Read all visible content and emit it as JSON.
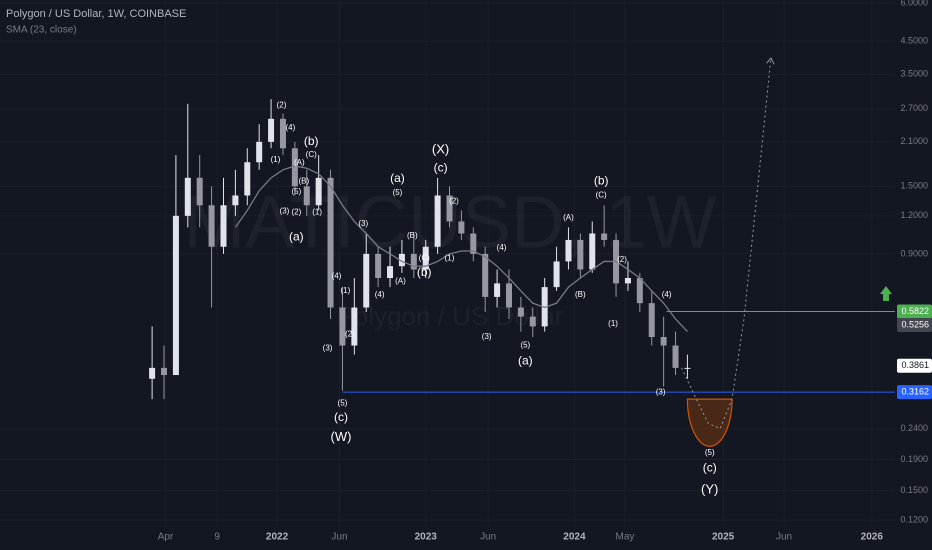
{
  "chart_data": {
    "type": "candlestick",
    "title": "Polygon / US Dollar, 1W, COINBASE",
    "watermark": [
      "MATICUSD, 1W",
      "Polygon / US Dollar"
    ],
    "log_scale": true,
    "grid": true,
    "up_color": "#e0e3eb",
    "down_color": "#9598a1",
    "xlim": [
      2020.137,
      2026.156
    ],
    "ylim": [
      0.1132,
      6.14
    ],
    "xticks": [
      {
        "value": 2021.25,
        "label": "Apr"
      },
      {
        "value": 2021.597,
        "label": "9"
      },
      2022,
      {
        "value": 2022.42,
        "label": "Jun"
      },
      2023,
      {
        "value": 2023.42,
        "label": "Jun"
      },
      2024,
      {
        "value": 2024.34,
        "label": "May"
      },
      2025,
      {
        "value": 2025.41,
        "label": "Jun"
      },
      2026
    ],
    "yticks": [
      {
        "value": 6,
        "label": "6.0000"
      },
      {
        "value": 4.5,
        "label": "4.5000"
      },
      {
        "value": 3.5,
        "label": "3.5000"
      },
      {
        "value": 2.7,
        "label": "2.7000"
      },
      {
        "value": 2.1,
        "label": "2.1000"
      },
      {
        "value": 1.5,
        "label": "1.5000"
      },
      {
        "value": 1.2,
        "label": "1.2000"
      },
      {
        "value": 0.9,
        "label": "0.9000"
      },
      {
        "value": 0.24,
        "label": "0.2400"
      },
      {
        "value": 0.19,
        "label": "0.1900"
      },
      {
        "value": 0.15,
        "label": "0.1500"
      },
      {
        "value": 0.12,
        "label": "0.1200"
      }
    ],
    "x": [
      2021.16,
      2021.24,
      2021.32,
      2021.4,
      2021.48,
      2021.56,
      2021.64,
      2021.72,
      2021.8,
      2021.88,
      2021.96,
      2022.04,
      2022.12,
      2022.2,
      2022.28,
      2022.36,
      2022.44,
      2022.52,
      2022.6,
      2022.68,
      2022.76,
      2022.84,
      2022.92,
      2023,
      2023.08,
      2023.16,
      2023.24,
      2023.32,
      2023.4,
      2023.48,
      2023.56,
      2023.64,
      2023.72,
      2023.8,
      2023.88,
      2023.96,
      2024.04,
      2024.12,
      2024.2,
      2024.28,
      2024.36,
      2024.44,
      2024.52,
      2024.6,
      2024.68,
      2024.76
    ],
    "open": [
      0.35,
      0.38,
      0.36,
      1.2,
      1.6,
      1.3,
      0.95,
      1.3,
      1.4,
      1.8,
      2.1,
      2.5,
      2.0,
      1.5,
      1.3,
      1.6,
      0.6,
      0.45,
      0.6,
      0.9,
      0.75,
      0.82,
      0.9,
      0.8,
      0.95,
      1.4,
      1.15,
      1.05,
      0.9,
      0.65,
      0.72,
      0.6,
      0.56,
      0.52,
      0.7,
      0.85,
      1.0,
      0.8,
      1.05,
      1.0,
      0.72,
      0.75,
      0.62,
      0.48,
      0.45,
      0.38
    ],
    "high": [
      0.52,
      0.45,
      1.9,
      2.8,
      1.9,
      1.5,
      1.6,
      1.7,
      2.0,
      2.4,
      2.9,
      2.6,
      2.1,
      1.7,
      1.9,
      1.7,
      0.7,
      0.75,
      1.05,
      0.95,
      0.95,
      1.0,
      1.05,
      1.0,
      1.6,
      1.5,
      1.25,
      1.1,
      0.95,
      0.8,
      0.8,
      0.65,
      0.6,
      0.75,
      0.95,
      1.1,
      1.05,
      1.15,
      1.3,
      1.05,
      0.85,
      0.78,
      0.68,
      0.56,
      0.5,
      0.42
    ],
    "low": [
      0.3,
      0.3,
      0.36,
      1.1,
      1.1,
      0.6,
      0.9,
      1.2,
      1.3,
      1.7,
      2.0,
      1.9,
      1.4,
      1.2,
      1.25,
      0.55,
      0.32,
      0.42,
      0.58,
      0.7,
      0.7,
      0.78,
      0.75,
      0.75,
      0.9,
      1.1,
      1.0,
      0.85,
      0.58,
      0.6,
      0.55,
      0.5,
      0.48,
      0.5,
      0.68,
      0.8,
      0.75,
      0.78,
      0.95,
      0.65,
      0.68,
      0.58,
      0.45,
      0.33,
      0.36,
      0.35
    ],
    "close": [
      0.38,
      0.36,
      1.2,
      1.6,
      1.3,
      0.95,
      1.3,
      1.4,
      1.8,
      2.1,
      2.5,
      2.0,
      1.5,
      1.3,
      1.6,
      0.6,
      0.45,
      0.6,
      0.9,
      0.75,
      0.82,
      0.9,
      0.8,
      0.95,
      1.4,
      1.15,
      1.05,
      0.9,
      0.65,
      0.72,
      0.6,
      0.56,
      0.52,
      0.7,
      0.85,
      1.0,
      0.8,
      1.05,
      1.0,
      0.72,
      0.75,
      0.62,
      0.48,
      0.45,
      0.38,
      0.38
    ],
    "sma": {
      "name": "SMA (23, close)",
      "color": "#787b86",
      "values": [
        null,
        null,
        null,
        null,
        null,
        null,
        null,
        1.1,
        1.25,
        1.45,
        1.6,
        1.7,
        1.75,
        1.72,
        1.65,
        1.5,
        1.3,
        1.15,
        1.05,
        0.95,
        0.9,
        0.85,
        0.82,
        0.82,
        0.85,
        0.9,
        0.92,
        0.92,
        0.88,
        0.82,
        0.75,
        0.68,
        0.62,
        0.6,
        0.62,
        0.7,
        0.75,
        0.8,
        0.85,
        0.85,
        0.8,
        0.75,
        0.68,
        0.62,
        0.55,
        0.5
      ]
    },
    "levels": [
      {
        "value": 0.5822,
        "from": 2024.62,
        "color": "#4caf50"
      },
      {
        "value": 0.3162,
        "from": 2022.44,
        "color": "#2962ff"
      }
    ],
    "price_labels": [
      {
        "value": 0.5822,
        "label": "0.5822",
        "color": "#4caf50"
      },
      {
        "value": 0.5256,
        "label": "0.5256",
        "color": "#434651"
      },
      {
        "value": 0.3861,
        "label": "0.3861",
        "color": "#ffffff"
      },
      {
        "value": 0.3162,
        "label": "0.3162",
        "color": "#2962ff"
      }
    ],
    "projection": {
      "x": [
        2024.72,
        2024.82,
        2024.9,
        2024.98,
        2025.06,
        2025.14,
        2025.22,
        2025.32
      ],
      "y": [
        0.38,
        0.3,
        0.25,
        0.24,
        0.3,
        0.55,
        1.3,
        3.9
      ]
    },
    "target_zone": {
      "x": [
        2024.76,
        2025.06
      ],
      "y": [
        0.21,
        0.3
      ]
    },
    "annotations": [
      {
        "text": "(2)",
        "x": 2022.03,
        "y": 2.77
      },
      {
        "text": "(4)",
        "x": 2022.09,
        "y": 2.33
      },
      {
        "text": "(1)",
        "x": 2021.99,
        "y": 1.83
      },
      {
        "text": "(A)",
        "x": 2022.15,
        "y": 1.79
      },
      {
        "text": "(B)",
        "x": 2022.18,
        "y": 1.56
      },
      {
        "text": "(5)",
        "x": 2022.13,
        "y": 1.44
      },
      {
        "text": "(3)",
        "x": 2022.05,
        "y": 1.24
      },
      {
        "text": "(2)",
        "x": 2022.13,
        "y": 1.23
      },
      {
        "text": "(1)",
        "x": 2022.27,
        "y": 1.23
      },
      {
        "text": "(a)",
        "x": 2022.13,
        "y": 1.02
      },
      {
        "text": "(b)",
        "x": 2022.23,
        "y": 2.1
      },
      {
        "text": "(C)",
        "x": 2022.23,
        "y": 1.9
      },
      {
        "text": "(4)",
        "x": 2022.4,
        "y": 0.76
      },
      {
        "text": "(1)",
        "x": 2022.46,
        "y": 0.68
      },
      {
        "text": "(2)",
        "x": 2022.49,
        "y": 0.49
      },
      {
        "text": "(3)",
        "x": 2022.34,
        "y": 0.44
      },
      {
        "text": "(5)",
        "x": 2022.44,
        "y": 0.29
      },
      {
        "text": "(c)",
        "x": 2022.43,
        "y": 0.26
      },
      {
        "text": "(W)",
        "x": 2022.43,
        "y": 0.224
      },
      {
        "text": "(3)",
        "x": 2022.58,
        "y": 1.13
      },
      {
        "text": "(4)",
        "x": 2022.69,
        "y": 0.66
      },
      {
        "text": "(A)",
        "x": 2022.83,
        "y": 0.73
      },
      {
        "text": "(5)",
        "x": 2022.81,
        "y": 1.43
      },
      {
        "text": "(a)",
        "x": 2022.81,
        "y": 1.59
      },
      {
        "text": "(B)",
        "x": 2022.91,
        "y": 1.03
      },
      {
        "text": "(C)",
        "x": 2022.99,
        "y": 0.87
      },
      {
        "text": "(b)",
        "x": 2022.99,
        "y": 0.78
      },
      {
        "text": "(X)",
        "x": 2023.1,
        "y": 1.97
      },
      {
        "text": "(c)",
        "x": 2023.1,
        "y": 1.72
      },
      {
        "text": "(2)",
        "x": 2023.19,
        "y": 1.34
      },
      {
        "text": "(1)",
        "x": 2023.16,
        "y": 0.87
      },
      {
        "text": "(4)",
        "x": 2023.51,
        "y": 0.94
      },
      {
        "text": "(3)",
        "x": 2023.41,
        "y": 0.48
      },
      {
        "text": "(5)",
        "x": 2023.67,
        "y": 0.45
      },
      {
        "text": "(a)",
        "x": 2023.67,
        "y": 0.4
      },
      {
        "text": "(A)",
        "x": 2023.96,
        "y": 1.18
      },
      {
        "text": "(B)",
        "x": 2024.04,
        "y": 0.66
      },
      {
        "text": "(b)",
        "x": 2024.18,
        "y": 1.56
      },
      {
        "text": "(C)",
        "x": 2024.18,
        "y": 1.4
      },
      {
        "text": "(2)",
        "x": 2024.32,
        "y": 0.86
      },
      {
        "text": "(1)",
        "x": 2024.26,
        "y": 0.53
      },
      {
        "text": "(4)",
        "x": 2024.62,
        "y": 0.66
      },
      {
        "text": "(3)",
        "x": 2024.58,
        "y": 0.316
      },
      {
        "text": "(5)",
        "x": 2024.91,
        "y": 0.2
      },
      {
        "text": "(c)",
        "x": 2024.91,
        "y": 0.178
      },
      {
        "text": "(Y)",
        "x": 2024.91,
        "y": 0.151
      }
    ]
  }
}
